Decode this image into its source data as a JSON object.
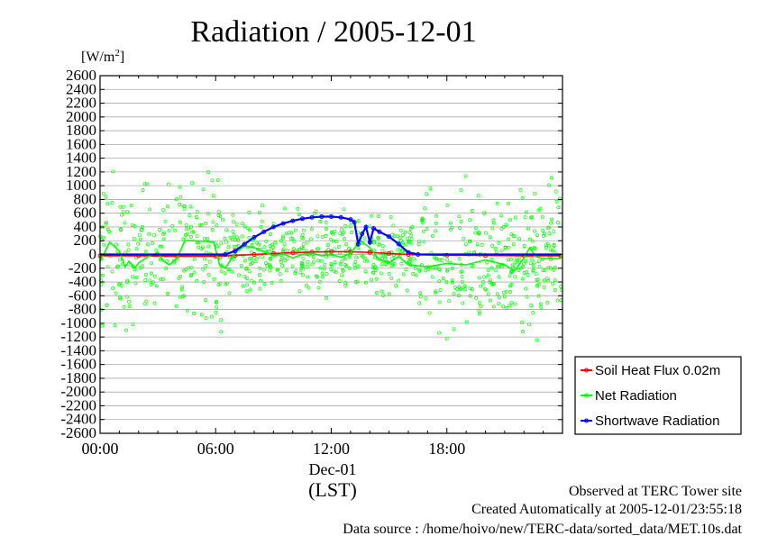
{
  "chart_data": {
    "type": "line",
    "title": "Radiation / 2005-12-01",
    "ylabel_unit": "[W/m",
    "ylabel_unit_sup": "2",
    "ylabel_unit_end": "]",
    "ylim": [
      -2600,
      2600
    ],
    "yticks": [
      2600,
      2400,
      2200,
      2000,
      1800,
      1600,
      1400,
      1200,
      1000,
      800,
      600,
      400,
      200,
      0,
      -200,
      -400,
      -600,
      -800,
      -1000,
      -1200,
      -1400,
      -1600,
      -1800,
      -2000,
      -2200,
      -2400,
      -2600
    ],
    "xlim": [
      0,
      24
    ],
    "xticks": [
      {
        "value": 0,
        "label": "00:00"
      },
      {
        "value": 6,
        "label": "06:00"
      },
      {
        "value": 12,
        "label": "12:00"
      },
      {
        "value": 18,
        "label": "18:00"
      }
    ],
    "date_label": "Dec-01",
    "time_zone_label": "(LST)",
    "grid": true,
    "legend_position": "right",
    "series": [
      {
        "name": "Soil Heat Flux 0.02m",
        "color": "#ff0000",
        "x": [
          0,
          2,
          4,
          6,
          7,
          8,
          9,
          10,
          11,
          12,
          13,
          14,
          15,
          16,
          18,
          20,
          22,
          23.9
        ],
        "y": [
          -20,
          -20,
          -25,
          -25,
          -15,
          0,
          15,
          25,
          35,
          40,
          40,
          30,
          15,
          0,
          -10,
          -15,
          -20,
          -20
        ]
      },
      {
        "name": "Net Radiation",
        "color": "#00ff00",
        "x": [
          0,
          0.5,
          1,
          1.3,
          1.5,
          1.8,
          2,
          2.5,
          3,
          3.3,
          3.6,
          4,
          4.4,
          4.8,
          5.5,
          5.9,
          6.2,
          6.5,
          7,
          7.5,
          8,
          8.5,
          9,
          9.5,
          10,
          10.5,
          11,
          11.5,
          12,
          12.5,
          13,
          13.5,
          14,
          14.5,
          15,
          15.5,
          16,
          17,
          18,
          19,
          20,
          21,
          21.5,
          22,
          22.3,
          22.6,
          23,
          23.9
        ],
        "y": [
          -100,
          180,
          50,
          -180,
          -100,
          -200,
          -120,
          -30,
          30,
          -100,
          -150,
          -50,
          200,
          200,
          190,
          180,
          -150,
          -200,
          20,
          120,
          100,
          40,
          -20,
          10,
          -50,
          0,
          20,
          -20,
          0,
          -40,
          20,
          200,
          100,
          -80,
          -120,
          -30,
          -150,
          -180,
          -130,
          -150,
          -80,
          -150,
          -240,
          -50,
          100,
          -30,
          -60,
          -60
        ]
      },
      {
        "name": "Shortwave Radiation",
        "color": "#0000ff",
        "x": [
          0,
          6.5,
          7,
          7.5,
          8,
          8.5,
          9,
          9.5,
          10,
          10.5,
          11,
          11.5,
          12,
          12.5,
          13,
          13.2,
          13.4,
          13.6,
          13.8,
          14,
          14.2,
          14.5,
          15,
          15.5,
          16,
          16.5,
          18,
          20,
          22,
          23.9
        ],
        "y": [
          0,
          0,
          50,
          150,
          250,
          330,
          400,
          450,
          490,
          520,
          540,
          550,
          550,
          540,
          510,
          470,
          150,
          300,
          400,
          180,
          380,
          330,
          260,
          150,
          30,
          0,
          0,
          0,
          0,
          0
        ]
      }
    ],
    "scatter_series_color": "#00ff00"
  },
  "footer": {
    "line1": "Observed at TERC Tower site",
    "line2": "Created Automatically at 2005-12-01/23:55:18",
    "line3": "Data source : /home/hoivo/new/TERC-data/sorted_data/MET.10s.dat"
  }
}
